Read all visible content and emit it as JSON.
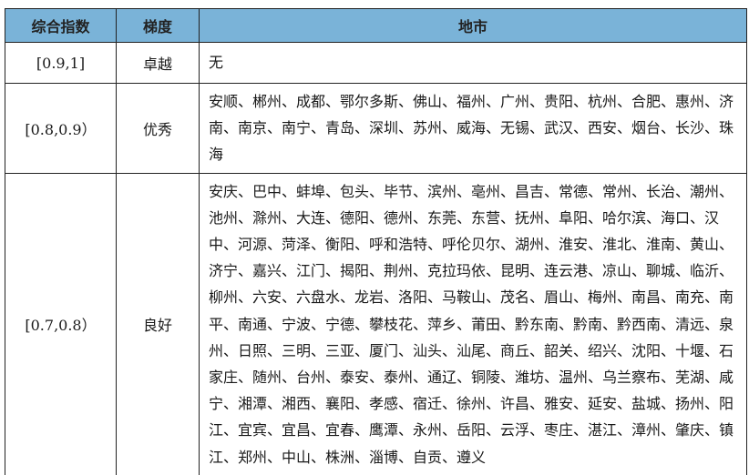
{
  "table": {
    "headers": [
      "综合指数",
      "梯度",
      "地市"
    ],
    "rows": [
      {
        "index": "[0.9,1]",
        "grade": "卓越",
        "cities": "无"
      },
      {
        "index": "[0.8,0.9）",
        "grade": "优秀",
        "cities": "安顺、郴州、成都、鄂尔多斯、佛山、福州、广州、贵阳、杭州、合肥、惠州、济南、南京、南宁、青岛、深圳、苏州、威海、无锡、武汉、西安、烟台、长沙、珠海"
      },
      {
        "index": "[0.7,0.8）",
        "grade": "良好",
        "cities": "安庆、巴中、蚌埠、包头、毕节、滨州、亳州、昌吉、常德、常州、长治、潮州、池州、滁州、大连、德阳、德州、东莞、东营、抚州、阜阳、哈尔滨、海口、汉中、河源、菏泽、衡阳、呼和浩特、呼伦贝尔、湖州、淮安、淮北、淮南、黄山、济宁、嘉兴、江门、揭阳、荆州、克拉玛依、昆明、连云港、凉山、聊城、临沂、柳州、六安、六盘水、龙岩、洛阳、马鞍山、茂名、眉山、梅州、南昌、南充、南平、南通、宁波、宁德、攀枝花、萍乡、莆田、黔东南、黔南、黔西南、清远、泉州、日照、三明、三亚、厦门、汕头、汕尾、商丘、韶关、绍兴、沈阳、十堰、石家庄、随州、台州、泰安、泰州、通辽、铜陵、潍坊、温州、乌兰察布、芜湖、咸宁、湘潭、湘西、襄阳、孝感、宿迁、徐州、许昌、雅安、延安、盐城、扬州、阳江、宜宾、宜昌、宜春、鹰潭、永州、岳阳、云浮、枣庄、湛江、漳州、肇庆、镇江、郑州、中山、株洲、淄博、自贡、遵义"
      }
    ]
  },
  "colors": {
    "header_bg": "#7ab3d8",
    "border": "#222222"
  }
}
